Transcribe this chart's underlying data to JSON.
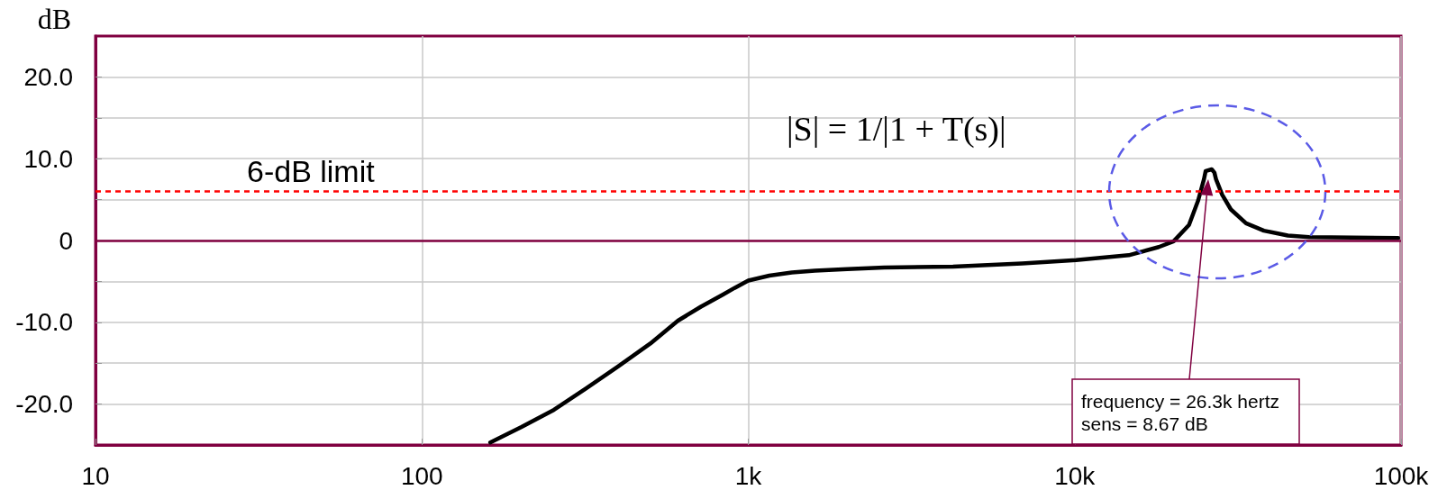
{
  "chart_data": {
    "type": "line",
    "ylabel": "dB",
    "x": [
      162,
      202,
      254,
      318,
      399,
      501,
      609,
      716,
      837,
      908,
      1000,
      1160,
      1360,
      1600,
      2010,
      2610,
      4240,
      6900,
      10100,
      14650,
      18100,
      20100,
      22400,
      23900,
      24900,
      25200,
      26300,
      26800,
      27100,
      28300,
      30100,
      33500,
      38000,
      45000,
      52300,
      98000
    ],
    "values": [
      -24.7,
      -22.8,
      -20.7,
      -18.1,
      -15.4,
      -12.6,
      -9.8,
      -8.1,
      -6.6,
      -5.8,
      -4.9,
      -4.3,
      -3.9,
      -3.7,
      -3.5,
      -3.3,
      -3.2,
      -2.8,
      -2.4,
      -1.8,
      -0.8,
      -0.1,
      1.9,
      4.9,
      7.5,
      8.5,
      8.7,
      8.3,
      7.5,
      5.6,
      3.8,
      2.1,
      1.2,
      0.6,
      0.4,
      0.3
    ],
    "color": "#000000",
    "marker": "none",
    "line_style": "solid",
    "log": "x",
    "xlim": [
      10,
      100000
    ],
    "ylim": [
      -25,
      25
    ],
    "xticks": [
      10,
      100,
      {
        "value": 1000,
        "label": "1k"
      },
      {
        "value": 10000,
        "label": "10k"
      },
      {
        "value": 100000,
        "label": "100k"
      }
    ],
    "yticks": [
      {
        "value": -20,
        "label": "-20.0"
      },
      {
        "value": -15,
        "label": null
      },
      {
        "value": -10,
        "label": "-10.0"
      },
      {
        "value": -5,
        "label": null
      },
      0,
      {
        "value": 5,
        "label": null
      },
      {
        "value": 10,
        "label": "10.0"
      },
      {
        "value": 15,
        "label": null
      },
      {
        "value": 20,
        "label": "20.0"
      }
    ],
    "grid": true,
    "ref_lines": [
      {
        "axis": "y",
        "value": 6,
        "label": "6-dB limit",
        "color": "#ff0000",
        "line_style": "dashed"
      },
      {
        "axis": "y",
        "value": 0,
        "color": "#800040"
      }
    ],
    "annotations": [
      "|S| = 1/|1 + T(s)|",
      "frequency = 26.3k hertz\nsens = 8.67 dB"
    ]
  }
}
